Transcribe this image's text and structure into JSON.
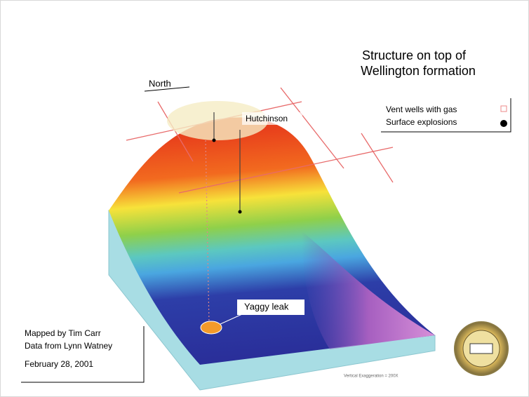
{
  "title": {
    "line1": "Structure on top of",
    "line2": "Wellington formation"
  },
  "labels": {
    "north": "North",
    "hutchinson": "Hutchinson",
    "yaggy": "Yaggy leak",
    "exaggeration": "Vertical Exaggeration = 200X"
  },
  "legend": {
    "items": [
      "Vent wells with gas",
      "Surface explosions"
    ]
  },
  "credits": {
    "mapped": "Mapped by Tim Carr",
    "data": "Data from Lynn Watney",
    "date": "February 28, 2001"
  }
}
